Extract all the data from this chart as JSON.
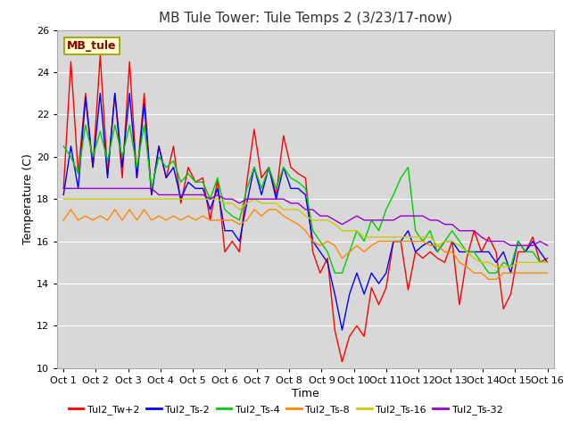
{
  "title": "MB Tule Tower: Tule Temps 2 (3/23/17-now)",
  "xlabel": "Time",
  "ylabel": "Temperature (C)",
  "ylim": [
    10,
    26
  ],
  "yticks": [
    10,
    12,
    14,
    16,
    18,
    20,
    22,
    24,
    26
  ],
  "x_labels": [
    "Oct 1",
    "Oct 2",
    "Oct 3",
    "Oct 4",
    "Oct 5",
    "Oct 6",
    "Oct 7",
    "Oct 8",
    "Oct 9",
    "Oct 10",
    "Oct 11",
    "Oct 12",
    "Oct 13",
    "Oct 14",
    "Oct 15",
    "Oct 16"
  ],
  "fig_bg_color": "#ffffff",
  "plot_bg_color": "#d8d8d8",
  "grid_color": "#ffffff",
  "series": [
    {
      "label": "Tul2_Tw+2",
      "color": "#ff0000",
      "values": [
        18.5,
        24.5,
        19.2,
        23.0,
        19.5,
        24.8,
        19.2,
        23.0,
        19.0,
        24.5,
        19.0,
        23.0,
        18.2,
        20.5,
        19.0,
        20.5,
        17.8,
        19.5,
        18.8,
        19.0,
        17.0,
        18.9,
        15.5,
        16.0,
        15.5,
        18.8,
        21.3,
        19.0,
        19.5,
        18.2,
        21.0,
        19.5,
        19.2,
        19.0,
        15.5,
        14.5,
        15.2,
        11.8,
        10.3,
        11.5,
        12.0,
        11.5,
        13.8,
        13.0,
        13.8,
        16.0,
        16.0,
        13.7,
        15.5,
        15.2,
        15.5,
        15.2,
        15.0,
        16.0,
        13.0,
        15.2,
        16.5,
        15.5,
        16.2,
        15.5,
        12.8,
        13.5,
        15.5,
        15.5,
        16.2,
        15.0,
        15.2
      ]
    },
    {
      "label": "Tul2_Ts-2",
      "color": "#0000ff",
      "values": [
        18.2,
        20.5,
        18.5,
        22.8,
        19.5,
        23.0,
        19.0,
        23.0,
        19.5,
        23.0,
        19.0,
        22.5,
        18.2,
        20.5,
        19.0,
        19.5,
        18.0,
        18.8,
        18.5,
        18.5,
        17.5,
        18.5,
        16.5,
        16.5,
        16.0,
        17.8,
        19.5,
        18.2,
        19.5,
        18.0,
        19.5,
        18.5,
        18.5,
        18.2,
        16.0,
        15.5,
        15.0,
        13.5,
        11.8,
        13.5,
        14.5,
        13.5,
        14.5,
        14.0,
        14.5,
        16.0,
        16.0,
        16.5,
        15.5,
        15.8,
        16.0,
        15.5,
        16.0,
        16.0,
        15.5,
        15.5,
        15.5,
        15.5,
        15.5,
        15.0,
        15.5,
        14.5,
        16.0,
        15.5,
        16.0,
        15.5,
        15.0
      ]
    },
    {
      "label": "Tul2_Ts-4",
      "color": "#00cc00",
      "values": [
        20.5,
        20.0,
        19.2,
        21.5,
        20.0,
        21.2,
        19.8,
        21.5,
        20.0,
        21.5,
        19.5,
        21.5,
        18.5,
        20.0,
        19.5,
        19.8,
        18.8,
        19.2,
        18.8,
        18.8,
        18.0,
        19.0,
        17.5,
        17.2,
        17.0,
        18.5,
        19.5,
        18.5,
        19.5,
        18.5,
        19.5,
        19.0,
        18.8,
        18.5,
        16.5,
        16.0,
        15.5,
        14.5,
        14.5,
        15.5,
        16.5,
        16.0,
        17.0,
        16.5,
        17.5,
        18.2,
        19.0,
        19.5,
        16.5,
        16.0,
        16.5,
        15.5,
        16.0,
        16.5,
        16.0,
        15.5,
        15.5,
        15.0,
        14.5,
        14.5,
        15.0,
        14.8,
        16.0,
        15.5,
        15.5,
        15.0,
        15.0
      ]
    },
    {
      "label": "Tul2_Ts-8",
      "color": "#ff8800",
      "values": [
        17.0,
        17.5,
        17.0,
        17.2,
        17.0,
        17.2,
        17.0,
        17.5,
        17.0,
        17.5,
        17.0,
        17.5,
        17.0,
        17.2,
        17.0,
        17.2,
        17.0,
        17.2,
        17.0,
        17.2,
        17.0,
        17.0,
        17.0,
        17.0,
        16.8,
        17.0,
        17.5,
        17.2,
        17.5,
        17.5,
        17.2,
        17.0,
        16.8,
        16.5,
        16.0,
        15.8,
        16.0,
        15.8,
        15.2,
        15.5,
        15.8,
        15.5,
        15.8,
        16.0,
        16.0,
        16.0,
        16.0,
        16.0,
        16.0,
        16.0,
        15.8,
        15.8,
        15.5,
        15.5,
        15.0,
        14.8,
        14.5,
        14.5,
        14.2,
        14.2,
        14.5,
        14.5,
        14.5,
        14.5,
        14.5,
        14.5,
        14.5
      ]
    },
    {
      "label": "Tul2_Ts-16",
      "color": "#cccc00",
      "values": [
        18.0,
        18.0,
        18.0,
        18.0,
        18.0,
        18.0,
        18.0,
        18.0,
        18.0,
        18.0,
        18.0,
        18.0,
        18.0,
        18.0,
        18.0,
        18.0,
        18.0,
        18.0,
        18.0,
        18.0,
        18.0,
        18.0,
        17.8,
        17.8,
        17.5,
        17.8,
        18.0,
        17.8,
        17.8,
        17.8,
        17.5,
        17.5,
        17.5,
        17.2,
        17.0,
        17.0,
        17.0,
        16.8,
        16.5,
        16.5,
        16.5,
        16.2,
        16.2,
        16.2,
        16.2,
        16.2,
        16.2,
        16.2,
        16.2,
        16.2,
        16.2,
        15.8,
        16.0,
        16.0,
        15.8,
        15.5,
        15.2,
        15.0,
        15.0,
        14.8,
        14.8,
        14.8,
        15.0,
        15.0,
        15.0,
        15.0,
        15.0
      ]
    },
    {
      "label": "Tul2_Ts-32",
      "color": "#9900cc",
      "values": [
        18.5,
        18.5,
        18.5,
        18.5,
        18.5,
        18.5,
        18.5,
        18.5,
        18.5,
        18.5,
        18.5,
        18.5,
        18.5,
        18.2,
        18.2,
        18.2,
        18.2,
        18.2,
        18.2,
        18.2,
        18.0,
        18.2,
        18.0,
        18.0,
        17.8,
        18.0,
        18.0,
        18.0,
        18.0,
        18.0,
        18.0,
        17.8,
        17.8,
        17.5,
        17.5,
        17.2,
        17.2,
        17.0,
        16.8,
        17.0,
        17.2,
        17.0,
        17.0,
        17.0,
        17.0,
        17.0,
        17.2,
        17.2,
        17.2,
        17.2,
        17.0,
        17.0,
        16.8,
        16.8,
        16.5,
        16.5,
        16.5,
        16.2,
        16.0,
        16.0,
        16.0,
        15.8,
        15.8,
        15.8,
        15.8,
        16.0,
        15.8
      ]
    }
  ],
  "annotation_box": {
    "text": "MB_tule",
    "facecolor": "#ffffcc",
    "edgecolor": "#999900",
    "textcolor": "#880000",
    "fontsize": 9,
    "fontweight": "bold"
  },
  "title_fontsize": 11,
  "axis_label_fontsize": 9,
  "tick_fontsize": 8,
  "legend_fontsize": 8
}
